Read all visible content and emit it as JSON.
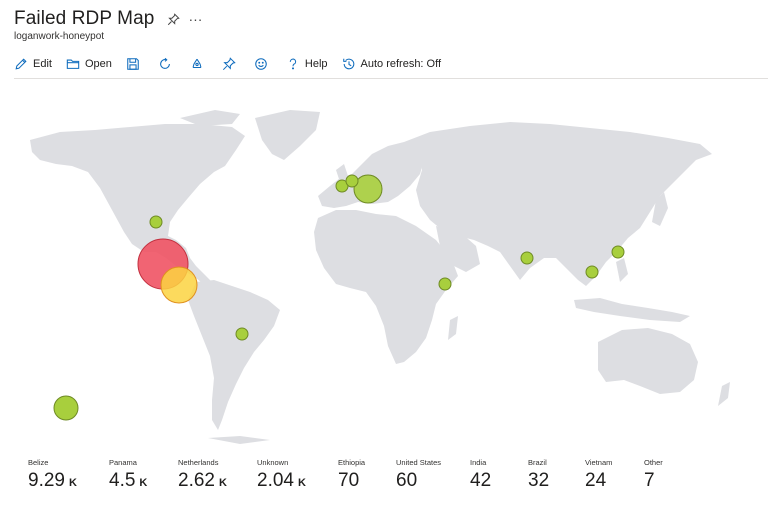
{
  "header": {
    "title": "Failed RDP Map",
    "subtitle": "loganwork-honeypot",
    "pin_icon": "pin-icon",
    "more_icon": "more-icon"
  },
  "toolbar": {
    "edit_label": "Edit",
    "open_label": "Open",
    "help_label": "Help",
    "auto_refresh_label": "Auto refresh: Off"
  },
  "colors": {
    "map_land": "#dddee2",
    "bubble_red": "#ef5364",
    "bubble_yellow": "#fcd341",
    "bubble_orange": "#f8a24b",
    "bubble_green": "#a8cf3d",
    "bubble_stroke": "#6e8a24"
  },
  "tiles": [
    {
      "label": "Belize",
      "value": "9.29",
      "unit": "K"
    },
    {
      "label": "Panama",
      "value": "4.5",
      "unit": "K"
    },
    {
      "label": "Netherlands",
      "value": "2.62",
      "unit": "K"
    },
    {
      "label": "Unknown",
      "value": "2.04",
      "unit": "K"
    },
    {
      "label": "Ethiopia",
      "value": "70",
      "unit": ""
    },
    {
      "label": "United States",
      "value": "60",
      "unit": ""
    },
    {
      "label": "India",
      "value": "42",
      "unit": ""
    },
    {
      "label": "Brazil",
      "value": "32",
      "unit": ""
    },
    {
      "label": "Vietnam",
      "value": "24",
      "unit": ""
    },
    {
      "label": "Other",
      "value": "7",
      "unit": ""
    }
  ]
}
